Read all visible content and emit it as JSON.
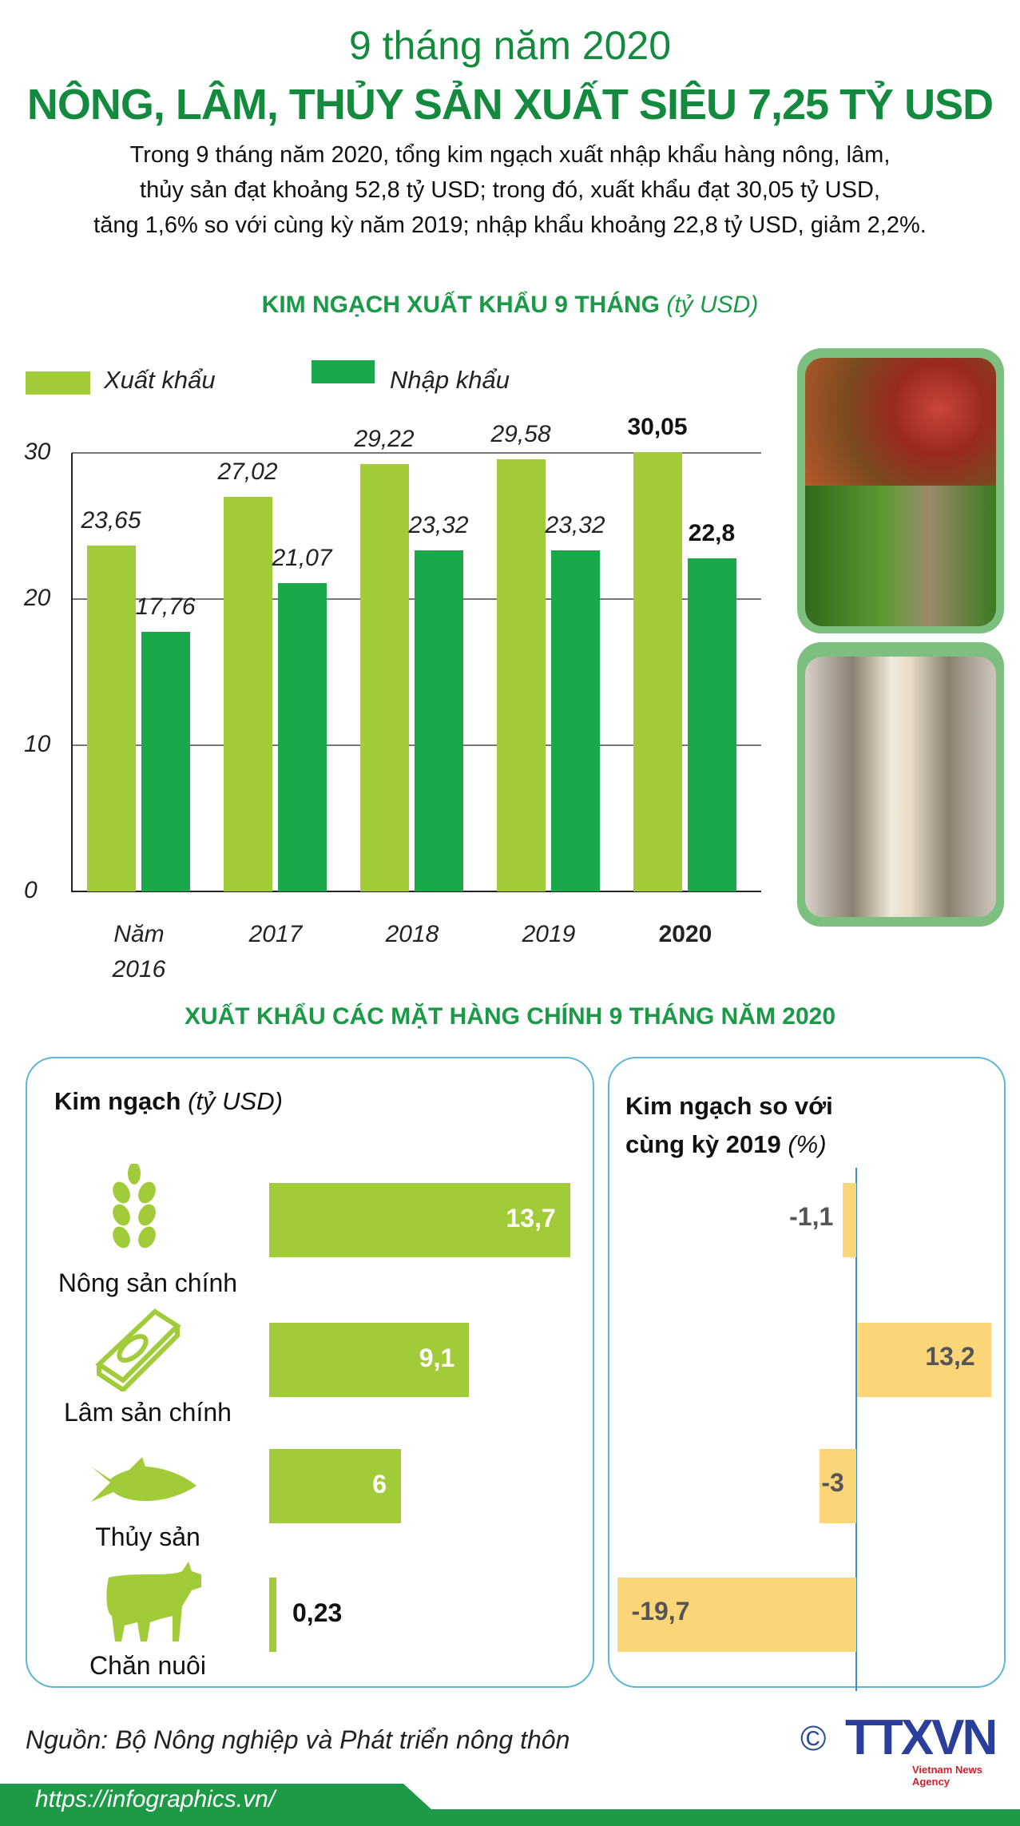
{
  "header": {
    "subtitle": "9 tháng năm 2020",
    "title": "NÔNG, LÂM, THỦY SẢN XUẤT SIÊU 7,25 TỶ USD",
    "paragraph": [
      "Trong 9 tháng năm 2020, tổng kim ngạch xuất nhập khẩu hàng nông, lâm,",
      "thủy sản đạt khoảng 52,8 tỷ USD; trong đó, xuất khẩu đạt 30,05 tỷ USD,",
      "tăng 1,6% so với cùng kỳ năm 2019; nhập khẩu khoảng 22,8 tỷ USD, giảm 2,2%."
    ]
  },
  "colors": {
    "export": "#a2cb3a",
    "import": "#19a84a",
    "change": "#fbd679",
    "title": "#138a3d"
  },
  "chart_data": [
    {
      "type": "bar",
      "title": "KIM NGẠCH XUẤT KHẨU 9 THÁNG",
      "unit": "(tỷ USD)",
      "categories": [
        "Năm 2016",
        "2017",
        "2018",
        "2019",
        "2020"
      ],
      "category_lines": [
        [
          "Năm",
          "2016"
        ],
        [
          "2017",
          ""
        ],
        [
          "2018",
          ""
        ],
        [
          "2019",
          ""
        ],
        [
          "2020",
          ""
        ]
      ],
      "series": [
        {
          "name": "Xuất khẩu",
          "values": [
            23.65,
            27.02,
            29.22,
            29.58,
            30.05
          ],
          "labels": [
            "23,65",
            "27,02",
            "29,22",
            "29,58",
            "30,05"
          ]
        },
        {
          "name": "Nhập khẩu",
          "values": [
            17.76,
            21.07,
            23.32,
            23.32,
            22.8
          ],
          "labels": [
            "17,76",
            "21,07",
            "23,32",
            "23,32",
            "22,8"
          ]
        }
      ],
      "yticks": [
        "0",
        "10",
        "20",
        "30"
      ],
      "ylim": [
        0,
        30
      ],
      "legend": "top-left",
      "grid": true
    },
    {
      "type": "bar",
      "title": "XUẤT KHẨU CÁC MẶT HÀNG CHÍNH 9 THÁNG NĂM 2020",
      "left_header": "Kim ngạch",
      "left_unit": "(tỷ USD)",
      "right_header_1": "Kim ngạch so với",
      "right_header_2": "cùng kỳ 2019",
      "right_unit": "(%)",
      "categories": [
        "Nông sản chính",
        "Lâm sản chính",
        "Thủy sản",
        "Chăn nuôi"
      ],
      "icons": [
        "wheat-icon",
        "wood-icon",
        "fish-icon",
        "cow-icon"
      ],
      "values": [
        13.7,
        9.1,
        6,
        0.23
      ],
      "value_labels": [
        "13,7",
        "9,1",
        "6",
        "0,23"
      ],
      "change": [
        -1.1,
        13.2,
        -3,
        -19.7
      ],
      "change_labels": [
        "-1,1",
        "13,2",
        "-3",
        "-19,7"
      ]
    }
  ],
  "footer": {
    "source": "Nguồn: Bộ Nông nghiệp và Phát triển nông thôn",
    "url": "https://infographics.vn/",
    "logo_text": "TTXVN",
    "logo_sub": "Vietnam News Agency",
    "copyright": "©"
  }
}
